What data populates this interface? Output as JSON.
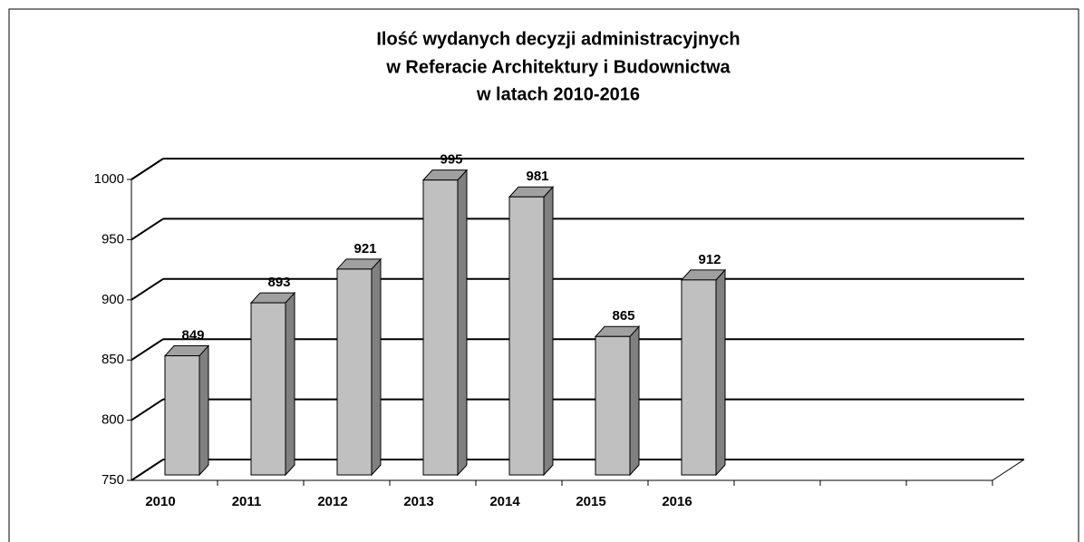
{
  "chart_data": {
    "type": "bar3d",
    "title": [
      "Ilość wydanych decyzji administracyjnych",
      "w Referacie Architektury i Budownictwa",
      "w latach 2010-2016"
    ],
    "categories": [
      "2010",
      "2011",
      "2012",
      "2013",
      "2014",
      "2015",
      "2016",
      null,
      null,
      null
    ],
    "values": [
      849,
      893,
      921,
      995,
      981,
      865,
      912,
      null,
      null,
      null
    ],
    "color": "#c0c0c0",
    "ylim": [
      750,
      1000
    ],
    "yticks": [
      750,
      800,
      850,
      900,
      950,
      1000
    ],
    "grid": true
  }
}
